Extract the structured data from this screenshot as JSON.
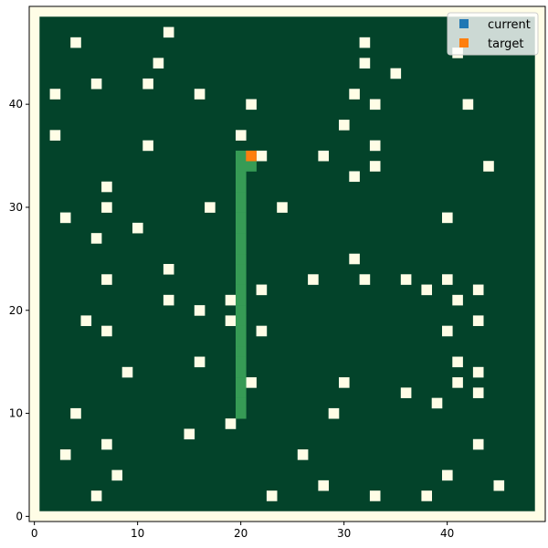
{
  "chart_data": {
    "type": "heatmap",
    "title": "",
    "xlabel": "",
    "ylabel": "",
    "xlim": [
      -0.5,
      49.5
    ],
    "ylim": [
      -0.5,
      49.5
    ],
    "x_ticks": [
      0,
      10,
      20,
      30,
      40
    ],
    "y_ticks": [
      0,
      10,
      20,
      30,
      40
    ],
    "grid": false,
    "legend_position": "top-right",
    "colors": {
      "border_background": "#fffde6",
      "field": "#03432a",
      "obstacle": "#fffde6",
      "path": "#369b55",
      "current": "#1f77b4",
      "target": "#ff7f0e"
    },
    "field": {
      "x": [
        1,
        48
      ],
      "y": [
        1,
        48
      ]
    },
    "obstacles": [
      [
        4,
        46
      ],
      [
        13,
        47
      ],
      [
        12,
        44
      ],
      [
        6,
        42
      ],
      [
        11,
        42
      ],
      [
        2,
        41
      ],
      [
        16,
        41
      ],
      [
        21,
        40
      ],
      [
        32,
        46
      ],
      [
        32,
        44
      ],
      [
        35,
        43
      ],
      [
        41,
        45
      ],
      [
        31,
        41
      ],
      [
        33,
        40
      ],
      [
        42,
        40
      ],
      [
        30,
        38
      ],
      [
        2,
        37
      ],
      [
        20,
        37
      ],
      [
        11,
        36
      ],
      [
        33,
        36
      ],
      [
        22,
        35
      ],
      [
        28,
        35
      ],
      [
        33,
        34
      ],
      [
        44,
        34
      ],
      [
        31,
        33
      ],
      [
        7,
        32
      ],
      [
        7,
        30
      ],
      [
        17,
        30
      ],
      [
        24,
        30
      ],
      [
        3,
        29
      ],
      [
        40,
        29
      ],
      [
        10,
        28
      ],
      [
        6,
        27
      ],
      [
        31,
        25
      ],
      [
        13,
        24
      ],
      [
        7,
        23
      ],
      [
        27,
        23
      ],
      [
        32,
        23
      ],
      [
        36,
        23
      ],
      [
        40,
        23
      ],
      [
        22,
        22
      ],
      [
        38,
        22
      ],
      [
        43,
        22
      ],
      [
        13,
        21
      ],
      [
        19,
        21
      ],
      [
        41,
        21
      ],
      [
        16,
        20
      ],
      [
        5,
        19
      ],
      [
        19,
        19
      ],
      [
        43,
        19
      ],
      [
        7,
        18
      ],
      [
        22,
        18
      ],
      [
        40,
        18
      ],
      [
        41,
        15
      ],
      [
        16,
        15
      ],
      [
        9,
        14
      ],
      [
        43,
        14
      ],
      [
        21,
        13
      ],
      [
        30,
        13
      ],
      [
        41,
        13
      ],
      [
        36,
        12
      ],
      [
        43,
        12
      ],
      [
        39,
        11
      ],
      [
        4,
        10
      ],
      [
        29,
        10
      ],
      [
        19,
        9
      ],
      [
        15,
        8
      ],
      [
        7,
        7
      ],
      [
        43,
        7
      ],
      [
        3,
        6
      ],
      [
        26,
        6
      ],
      [
        8,
        4
      ],
      [
        40,
        4
      ],
      [
        28,
        3
      ],
      [
        45,
        3
      ],
      [
        6,
        2
      ],
      [
        23,
        2
      ],
      [
        33,
        2
      ],
      [
        38,
        2
      ]
    ],
    "path_cells": [
      [
        20,
        10
      ],
      [
        20,
        11
      ],
      [
        20,
        12
      ],
      [
        20,
        13
      ],
      [
        20,
        14
      ],
      [
        20,
        15
      ],
      [
        20,
        16
      ],
      [
        20,
        17
      ],
      [
        20,
        18
      ],
      [
        20,
        19
      ],
      [
        20,
        20
      ],
      [
        20,
        21
      ],
      [
        20,
        22
      ],
      [
        20,
        23
      ],
      [
        20,
        24
      ],
      [
        20,
        25
      ],
      [
        20,
        26
      ],
      [
        20,
        27
      ],
      [
        20,
        28
      ],
      [
        20,
        29
      ],
      [
        20,
        30
      ],
      [
        20,
        31
      ],
      [
        20,
        32
      ],
      [
        20,
        33
      ],
      [
        20,
        34
      ],
      [
        21,
        34
      ],
      [
        20,
        35
      ]
    ],
    "current": [
      21,
      35
    ],
    "target": [
      21,
      35
    ],
    "series": [
      {
        "name": "current"
      },
      {
        "name": "target"
      }
    ]
  }
}
